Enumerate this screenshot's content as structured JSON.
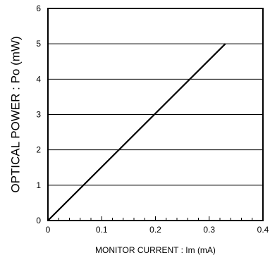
{
  "chart_data": {
    "type": "line",
    "title": "",
    "xlabel": "MONITOR CURRENT : Im (mA)",
    "ylabel": "OPTICAL POWER : Po (mW)",
    "xlim": [
      0,
      0.4
    ],
    "ylim": [
      0,
      6
    ],
    "x_ticks": [
      0,
      0.1,
      0.2,
      0.3,
      0.4
    ],
    "x_tick_labels": [
      "0",
      "0.1",
      "0.2",
      "0.3",
      "0.4"
    ],
    "y_ticks": [
      0,
      1,
      2,
      3,
      4,
      5,
      6
    ],
    "y_tick_labels": [
      "0",
      "1",
      "2",
      "3",
      "4",
      "5",
      "6"
    ],
    "grid": "horizontal",
    "legend": "none",
    "series": [
      {
        "color": "#000000",
        "x": [
          0,
          0.33
        ],
        "y": [
          0,
          5
        ]
      }
    ]
  }
}
